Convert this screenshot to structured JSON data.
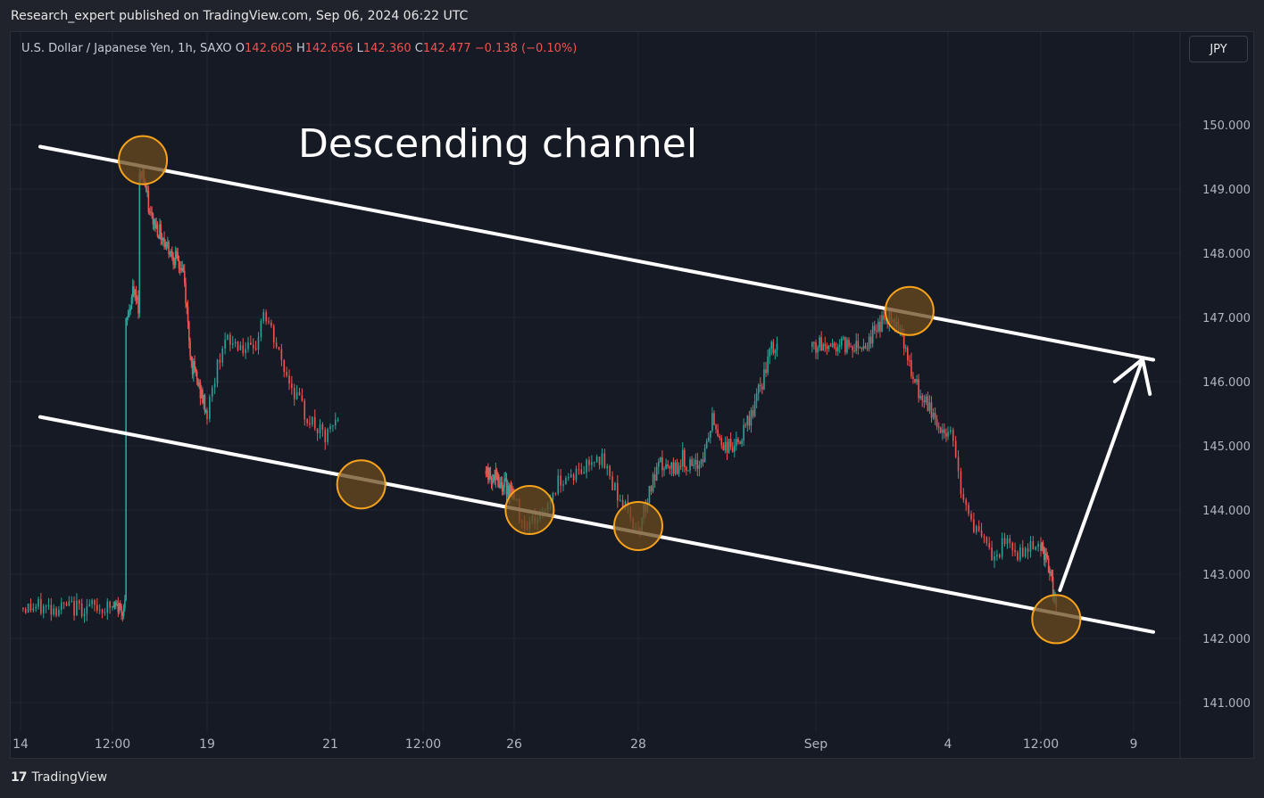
{
  "header": {
    "published": "Research_expert published on TradingView.com, Sep 06, 2024 06:22 UTC"
  },
  "legend": {
    "symbol": "U.S. Dollar / Japanese Yen, 1h, SAXO",
    "open_label": "O",
    "open": "142.605",
    "high_label": "H",
    "high": "142.656",
    "low_label": "L",
    "low": "142.360",
    "close_label": "C",
    "close": "142.477",
    "change": "−0.138 (−0.10%)"
  },
  "currency_button": "JPY",
  "annotation_title": "Descending channel",
  "footer": {
    "brand": "TradingView",
    "logo_glyph": "17"
  },
  "colors": {
    "background": "#161a25",
    "up_candle": "#26a69a",
    "down_candle": "#ef5350",
    "channel_line": "#ffffff",
    "marker_fill": "#6b4a1e",
    "marker_stroke": "#f7a21b"
  },
  "chart_data": {
    "type": "candlestick",
    "title": "U.S. Dollar / Japanese Yen, 1h, SAXO",
    "x_tick_labels": [
      "14",
      "12:00",
      "19",
      "21",
      "12:00",
      "26",
      "28",
      "Sep",
      "4",
      "12:00",
      "9"
    ],
    "y_tick_labels": [
      "150.000",
      "149.000",
      "148.000",
      "147.000",
      "146.000",
      "145.000",
      "144.000",
      "143.000",
      "142.000",
      "141.000"
    ],
    "ylim": [
      140.9,
      151.1
    ],
    "grid": true,
    "price_path": [
      [
        "16 00:00",
        146.9
      ],
      [
        "16 06:00",
        147.4
      ],
      [
        "16 11:00",
        147.2
      ],
      [
        "16 12:00",
        149.2
      ],
      [
        "16 15:00",
        149.3
      ],
      [
        "16 21:00",
        148.6
      ],
      [
        "18 03:00",
        147.7
      ],
      [
        "18 10:00",
        146.3
      ],
      [
        "19 00:00",
        145.5
      ],
      [
        "19 06:00",
        146.6
      ],
      [
        "19 12:00",
        146.6
      ],
      [
        "19 18:00",
        146.4
      ],
      [
        "19 22:00",
        147.1
      ],
      [
        "20 06:00",
        146.2
      ],
      [
        "20 14:00",
        145.5
      ],
      [
        "20 22:00",
        145.1
      ],
      [
        "21 06:00",
        145.6
      ],
      [
        "21 10:00",
        146.1
      ],
      [
        "21 14:00",
        145.0
      ],
      [
        "21 20:00",
        144.6
      ],
      [
        "22 02:00",
        145.4
      ],
      [
        "22 08:00",
        145.9
      ],
      [
        "22 14:00",
        146.3
      ],
      [
        "22 20:00",
        145.6
      ],
      [
        "23 02:00",
        145.4
      ],
      [
        "23 08:00",
        146.0
      ],
      [
        "23 12:00",
        145.9
      ],
      [
        "23 14:00",
        145.0
      ],
      [
        "25 22:00",
        144.3
      ],
      [
        "26 04:00",
        143.8
      ],
      [
        "26 10:00",
        143.9
      ],
      [
        "26 18:00",
        144.5
      ],
      [
        "27 02:00",
        144.6
      ],
      [
        "27 08:00",
        144.9
      ],
      [
        "27 12:00",
        144.6
      ],
      [
        "27 18:00",
        144.1
      ],
      [
        "28 00:00",
        143.7
      ],
      [
        "28 06:00",
        144.3
      ],
      [
        "28 12:00",
        144.7
      ],
      [
        "28 18:00",
        144.6
      ],
      [
        "29 00:00",
        144.8
      ],
      [
        "29 06:00",
        144.6
      ],
      [
        "29 12:00",
        144.9
      ],
      [
        "29 16:00",
        145.4
      ],
      [
        "29 22:00",
        145.0
      ],
      [
        "30 06:00",
        145.0
      ],
      [
        "30 12:00",
        145.4
      ],
      [
        "30 18:00",
        145.9
      ],
      [
        "31 00:00",
        146.5
      ],
      [
        "Sep 2 04:00",
        146.6
      ],
      [
        "Sep 2 10:00",
        146.9
      ],
      [
        "Sep 2 16:00",
        147.0
      ],
      [
        "Sep 2 22:00",
        146.9
      ],
      [
        "Sep 3 04:00",
        146.1
      ],
      [
        "Sep 3 10:00",
        145.7
      ],
      [
        "Sep 3 16:00",
        145.5
      ],
      [
        "Sep 3 20:00",
        145.2
      ],
      [
        "Sep 4 02:00",
        145.2
      ],
      [
        "Sep 4 06:00",
        144.1
      ],
      [
        "Sep 4 12:00",
        143.6
      ],
      [
        "Sep 4 18:00",
        143.2
      ],
      [
        "Sep 4 22:00",
        143.5
      ],
      [
        "Sep 5 04:00",
        143.3
      ],
      [
        "Sep 5 08:00",
        143.5
      ],
      [
        "Sep 5 14:00",
        143.4
      ],
      [
        "Sep 5 20:00",
        143.0
      ],
      [
        "Sep 6 02:00",
        142.48
      ]
    ],
    "last_candle": {
      "open": 142.605,
      "high": 142.656,
      "low": 142.36,
      "close": 142.477,
      "change": -0.138,
      "change_pct": -0.1
    },
    "annotations": {
      "upper_channel_line": {
        "from": [
          "Aug 14",
          149.66
        ],
        "to": [
          "Sep 9",
          146.34
        ]
      },
      "lower_channel_line": {
        "from": [
          "Aug 14",
          145.45
        ],
        "to": [
          "Sep 9",
          142.1
        ]
      },
      "touch_points": [
        {
          "position": "upper",
          "time": "Aug 16 15:00",
          "price": 149.45
        },
        {
          "position": "lower",
          "time": "Aug 21 12:00",
          "price": 144.4
        },
        {
          "position": "lower",
          "time": "Aug 26 06:00",
          "price": 144.0
        },
        {
          "position": "lower",
          "time": "Aug 28 00:00",
          "price": 143.75
        },
        {
          "position": "upper",
          "time": "Sep 3 03:00",
          "price": 147.1
        },
        {
          "position": "lower",
          "time": "Sep 6 02:00",
          "price": 142.3
        }
      ],
      "projection_arrow": {
        "from": [
          "Sep 6 02:00",
          142.75
        ],
        "to": [
          "Sep 9",
          146.35
        ]
      }
    }
  }
}
